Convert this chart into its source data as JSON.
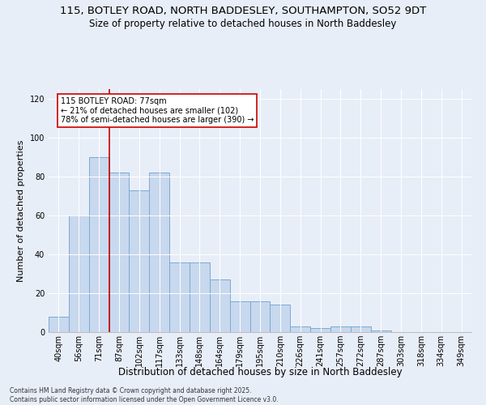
{
  "title1": "115, BOTLEY ROAD, NORTH BADDESLEY, SOUTHAMPTON, SO52 9DT",
  "title2": "Size of property relative to detached houses in North Baddesley",
  "xlabel": "Distribution of detached houses by size in North Baddesley",
  "ylabel": "Number of detached properties",
  "categories": [
    "40sqm",
    "56sqm",
    "71sqm",
    "87sqm",
    "102sqm",
    "117sqm",
    "133sqm",
    "148sqm",
    "164sqm",
    "179sqm",
    "195sqm",
    "210sqm",
    "226sqm",
    "241sqm",
    "257sqm",
    "272sqm",
    "287sqm",
    "303sqm",
    "318sqm",
    "334sqm",
    "349sqm"
  ],
  "values": [
    8,
    60,
    90,
    82,
    73,
    82,
    36,
    36,
    27,
    16,
    16,
    14,
    3,
    2,
    3,
    3,
    1,
    0,
    0,
    0,
    0
  ],
  "bar_color": "#c8d8ee",
  "bar_edge_color": "#7aaad0",
  "vline_x_index": 2.5,
  "vline_color": "#cc0000",
  "annotation_text": "115 BOTLEY ROAD: 77sqm\n← 21% of detached houses are smaller (102)\n78% of semi-detached houses are larger (390) →",
  "annotation_box_color": "#ffffff",
  "annotation_box_edge": "#cc0000",
  "ylim": [
    0,
    125
  ],
  "yticks": [
    0,
    20,
    40,
    60,
    80,
    100,
    120
  ],
  "background_color": "#e8eef8",
  "plot_bg_color": "#e8eef8",
  "footer": "Contains HM Land Registry data © Crown copyright and database right 2025.\nContains public sector information licensed under the Open Government Licence v3.0.",
  "title1_fontsize": 9.5,
  "title2_fontsize": 8.5,
  "xlabel_fontsize": 8.5,
  "ylabel_fontsize": 8,
  "tick_fontsize": 7,
  "annot_fontsize": 7,
  "footer_fontsize": 5.5
}
